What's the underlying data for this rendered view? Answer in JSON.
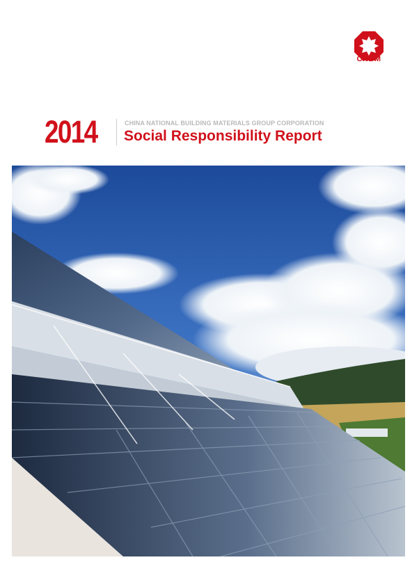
{
  "logo": {
    "text": "CNBM",
    "color": "#d0111b"
  },
  "cover": {
    "year": "2014",
    "organization": "CHINA NATIONAL BUILDING MATERIALS GROUP CORPORATION",
    "title": "Social Responsibility Report",
    "accent_color": "#d0111b"
  },
  "photo": {
    "subject": "solar-panel-roof-under-blue-sky"
  }
}
